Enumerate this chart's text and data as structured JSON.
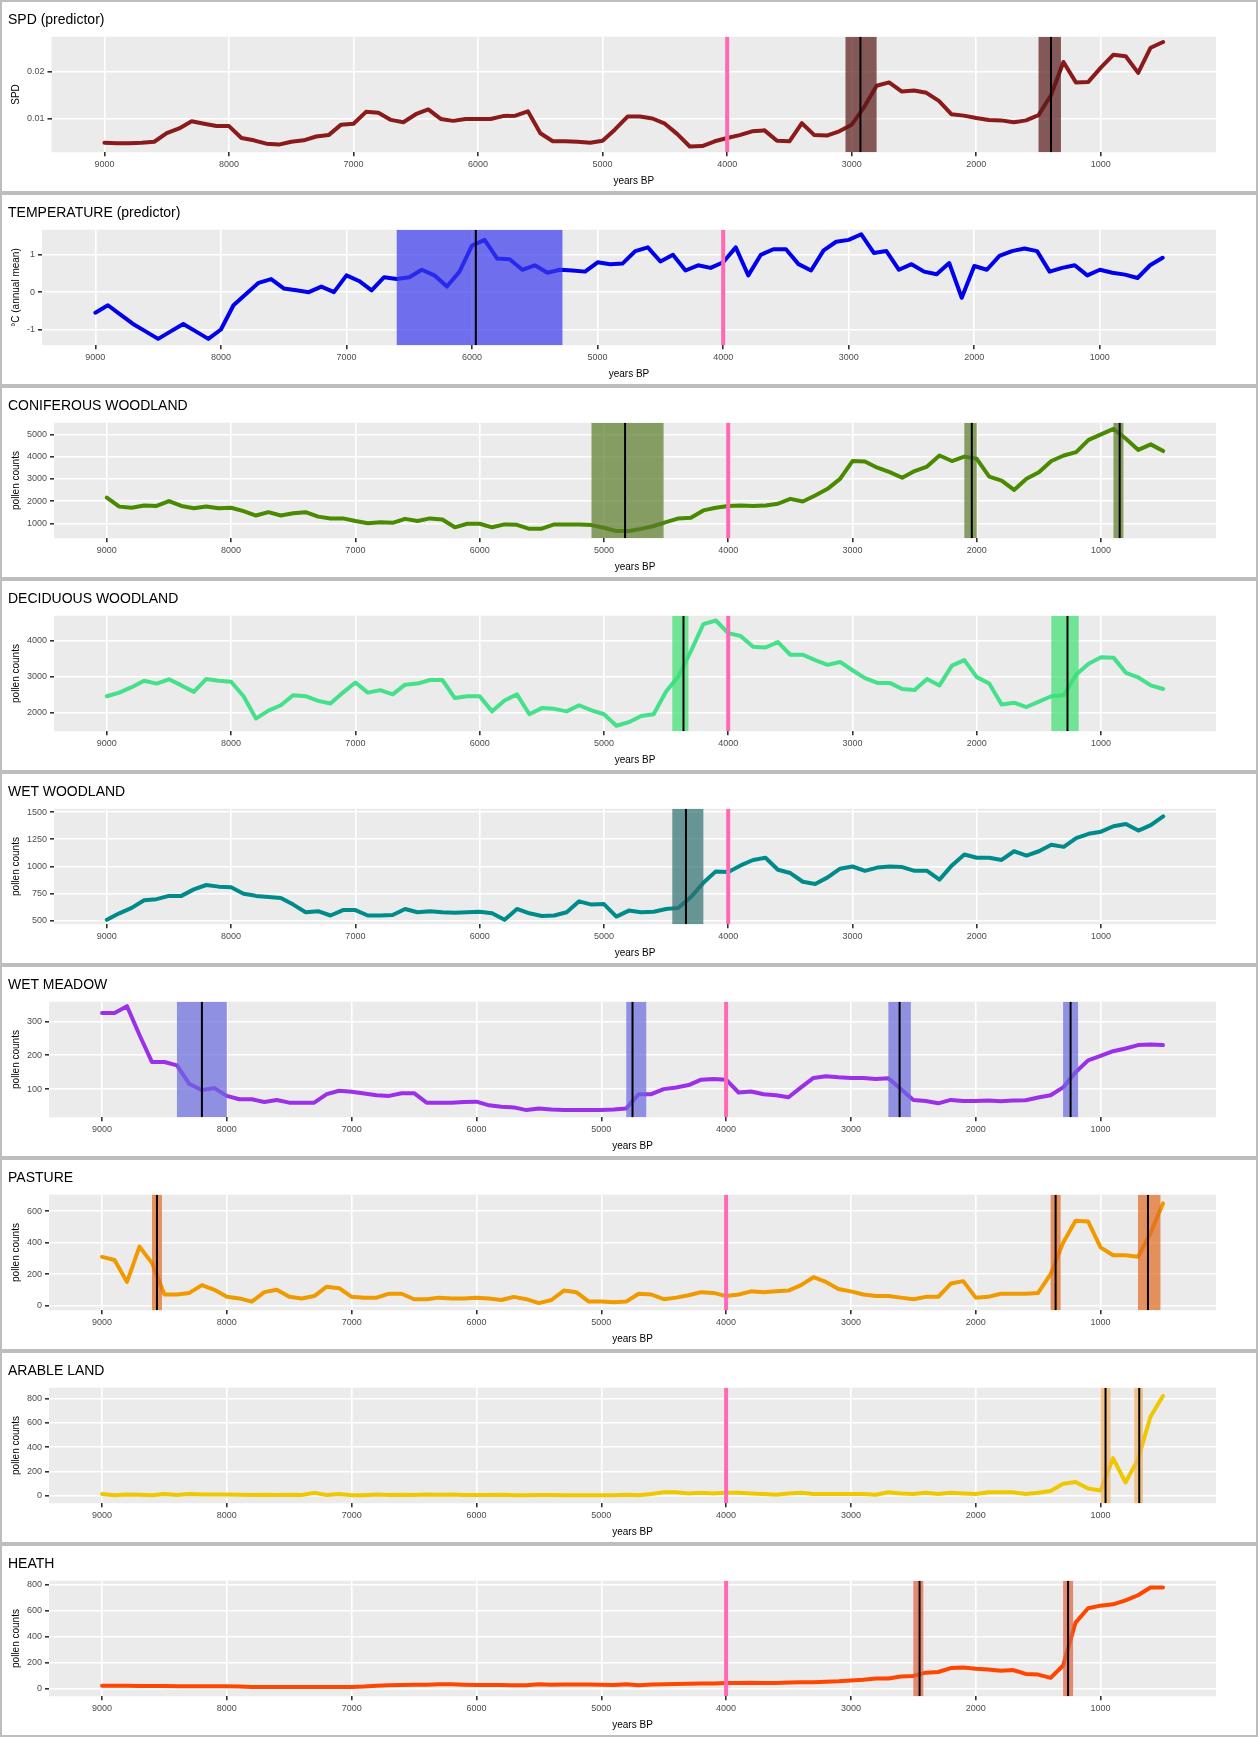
{
  "chart_data": [
    {
      "type": "line",
      "title": "SPD (predictor)",
      "xlabel": "years BP",
      "ylabel": "SPD",
      "grid": true,
      "xlim": [
        9425,
        75
      ],
      "xticks": [
        9000,
        8000,
        7000,
        6000,
        5000,
        4000,
        3000,
        2000,
        1000
      ],
      "ylim": [
        0.003,
        0.0273
      ],
      "yticks": [
        0.01,
        0.02
      ],
      "x": [
        9000,
        8900,
        8800,
        8700,
        8600,
        8500,
        8400,
        8300,
        8200,
        8100,
        8000,
        7900,
        7800,
        7700,
        7600,
        7500,
        7400,
        7300,
        7200,
        7100,
        7000,
        6900,
        6800,
        6700,
        6600,
        6500,
        6400,
        6300,
        6200,
        6100,
        6000,
        5900,
        5800,
        5700,
        5600,
        5500,
        5400,
        5300,
        5200,
        5100,
        5000,
        4900,
        4800,
        4700,
        4600,
        4500,
        4400,
        4300,
        4200,
        4100,
        4000,
        3900,
        3800,
        3700,
        3600,
        3500,
        3400,
        3300,
        3200,
        3100,
        3000,
        2900,
        2800,
        2700,
        2600,
        2500,
        2400,
        2300,
        2200,
        2100,
        2000,
        1900,
        1800,
        1700,
        1600,
        1500,
        1400,
        1300,
        1200,
        1100,
        1000,
        900,
        800,
        700,
        600,
        500
      ],
      "series": [
        {
          "color": "#8b1a1a",
          "values": [
            0.005,
            0.0049,
            0.0049,
            0.005,
            0.0052,
            0.007,
            0.008,
            0.0095,
            0.009,
            0.0085,
            0.0085,
            0.006,
            0.0055,
            0.0048,
            0.0046,
            0.0052,
            0.0055,
            0.0063,
            0.0066,
            0.0088,
            0.009,
            0.0115,
            0.0113,
            0.0098,
            0.0093,
            0.011,
            0.012,
            0.01,
            0.0096,
            0.01,
            0.01,
            0.01,
            0.0106,
            0.0107,
            0.0116,
            0.007,
            0.0053,
            0.0053,
            0.0052,
            0.005,
            0.0054,
            0.0078,
            0.0105,
            0.0105,
            0.0101,
            0.009,
            0.0068,
            0.0042,
            0.0043,
            0.0053,
            0.006,
            0.0066,
            0.0074,
            0.0076,
            0.0054,
            0.0053,
            0.0091,
            0.0066,
            0.0065,
            0.0074,
            0.0088,
            0.0125,
            0.017,
            0.0177,
            0.0158,
            0.016,
            0.0155,
            0.0138,
            0.011,
            0.0107,
            0.0102,
            0.0098,
            0.0097,
            0.0093,
            0.0097,
            0.0108,
            0.015,
            0.022,
            0.0177,
            0.0178,
            0.0208,
            0.0235,
            0.0232,
            0.0197,
            0.025,
            0.0262
          ]
        }
      ],
      "bands": [
        {
          "axis": "x",
          "from": 3050,
          "to": 2800,
          "color": "#5a1a1a"
        },
        {
          "axis": "x",
          "from": 1500,
          "to": 1320,
          "color": "#5a1a1a"
        }
      ],
      "ref_lines": [
        {
          "axis": "x",
          "value": 4000,
          "color": "#ff69b4"
        },
        {
          "axis": "x",
          "value": 2930,
          "color": "#000000"
        },
        {
          "axis": "x",
          "value": 1400,
          "color": "#000000"
        }
      ]
    },
    {
      "type": "line",
      "title": "TEMPERATURE (predictor)",
      "xlabel": "years BP",
      "ylabel": "°C (annual mean)",
      "grid": true,
      "xlim": [
        9425,
        75
      ],
      "xticks": [
        9000,
        8000,
        7000,
        6000,
        5000,
        4000,
        3000,
        2000,
        1000
      ],
      "ylim": [
        -1.42,
        1.67
      ],
      "yticks": [
        -1,
        0,
        1
      ],
      "x": [
        9000,
        8900,
        8800,
        8700,
        8600,
        8500,
        8400,
        8300,
        8200,
        8100,
        8000,
        7900,
        7800,
        7700,
        7600,
        7500,
        7400,
        7300,
        7200,
        7100,
        7000,
        6900,
        6800,
        6700,
        6600,
        6500,
        6400,
        6300,
        6200,
        6100,
        6000,
        5900,
        5800,
        5700,
        5600,
        5500,
        5400,
        5300,
        5200,
        5100,
        5000,
        4900,
        4800,
        4700,
        4600,
        4500,
        4400,
        4300,
        4200,
        4100,
        4000,
        3900,
        3800,
        3700,
        3600,
        3500,
        3400,
        3300,
        3200,
        3100,
        3000,
        2900,
        2800,
        2700,
        2600,
        2500,
        2400,
        2300,
        2200,
        2100,
        2000,
        1900,
        1800,
        1700,
        1600,
        1500,
        1400,
        1300,
        1200,
        1100,
        1000,
        900,
        800,
        700,
        600,
        500
      ],
      "series": [
        {
          "color": "#0000ee",
          "values": [
            -0.55,
            -0.35,
            -0.6,
            -0.85,
            -1.05,
            -1.25,
            -1.05,
            -0.85,
            -1.05,
            -1.25,
            -1.0,
            -0.35,
            -0.05,
            0.25,
            0.35,
            0.1,
            0.05,
            0.0,
            0.15,
            0.0,
            0.45,
            0.3,
            0.05,
            0.4,
            0.35,
            0.4,
            0.6,
            0.45,
            0.15,
            0.55,
            1.25,
            1.4,
            0.9,
            0.88,
            0.6,
            0.72,
            0.52,
            0.6,
            0.58,
            0.55,
            0.8,
            0.75,
            0.77,
            1.1,
            1.2,
            0.82,
            1.0,
            0.58,
            0.72,
            0.65,
            0.8,
            1.2,
            0.45,
            1.0,
            1.15,
            1.15,
            0.75,
            0.58,
            1.12,
            1.35,
            1.4,
            1.55,
            1.05,
            1.1,
            0.6,
            0.75,
            0.55,
            0.48,
            0.78,
            -0.15,
            0.7,
            0.6,
            0.97,
            1.1,
            1.17,
            1.1,
            0.55,
            0.65,
            0.72,
            0.45,
            0.6,
            0.52,
            0.47,
            0.38,
            0.72,
            0.92
          ]
        }
      ],
      "bands": [
        {
          "axis": "x",
          "from": 6600,
          "to": 5280,
          "color": "#3a3aee"
        }
      ],
      "ref_lines": [
        {
          "axis": "x",
          "value": 4000,
          "color": "#ff69b4"
        },
        {
          "axis": "x",
          "value": 5970,
          "color": "#000000"
        }
      ]
    },
    {
      "type": "line",
      "title": "CONIFEROUS WOODLAND",
      "xlabel": "years BP",
      "ylabel": "pollen counts",
      "grid": true,
      "xlim": [
        9425,
        75
      ],
      "xticks": [
        9000,
        8000,
        7000,
        6000,
        5000,
        4000,
        3000,
        2000,
        1000
      ],
      "ylim": [
        330,
        5520
      ],
      "yticks": [
        1000,
        2000,
        3000,
        4000,
        5000
      ],
      "x": [
        9000,
        8900,
        8800,
        8700,
        8600,
        8500,
        8400,
        8300,
        8200,
        8100,
        8000,
        7900,
        7800,
        7700,
        7600,
        7500,
        7400,
        7300,
        7200,
        7100,
        7000,
        6900,
        6800,
        6700,
        6600,
        6500,
        6400,
        6300,
        6200,
        6100,
        6000,
        5900,
        5800,
        5700,
        5600,
        5500,
        5400,
        5300,
        5200,
        5100,
        5000,
        4900,
        4800,
        4700,
        4600,
        4500,
        4400,
        4300,
        4200,
        4100,
        4000,
        3900,
        3800,
        3700,
        3600,
        3500,
        3400,
        3300,
        3200,
        3100,
        3000,
        2900,
        2800,
        2700,
        2600,
        2500,
        2400,
        2300,
        2200,
        2100,
        2000,
        1900,
        1800,
        1700,
        1600,
        1500,
        1400,
        1300,
        1200,
        1100,
        1000,
        900,
        800,
        700,
        600,
        500
      ],
      "series": [
        {
          "color": "#4a8a00",
          "values": [
            2150,
            1750,
            1700,
            1800,
            1780,
            2000,
            1780,
            1680,
            1760,
            1680,
            1700,
            1550,
            1350,
            1500,
            1350,
            1450,
            1500,
            1300,
            1220,
            1220,
            1100,
            1000,
            1050,
            1020,
            1200,
            1100,
            1220,
            1170,
            820,
            980,
            980,
            820,
            950,
            930,
            750,
            760,
            950,
            950,
            950,
            920,
            800,
            650,
            650,
            750,
            880,
            1050,
            1220,
            1250,
            1580,
            1700,
            1780,
            1800,
            1780,
            1800,
            1880,
            2100,
            1980,
            2250,
            2550,
            3000,
            3800,
            3780,
            3500,
            3300,
            3050,
            3350,
            3550,
            4050,
            3800,
            4000,
            3900,
            3100,
            2920,
            2500,
            3000,
            3300,
            3800,
            4050,
            4200,
            4750,
            5000,
            5250,
            4800,
            4300,
            4550,
            4250
          ]
        }
      ],
      "bands": [
        {
          "axis": "x",
          "from": 5100,
          "to": 4520,
          "color": "#5a7a2a"
        },
        {
          "axis": "x",
          "from": 2100,
          "to": 2000,
          "color": "#5a7a2a"
        },
        {
          "axis": "x",
          "from": 900,
          "to": 820,
          "color": "#5a7a2a"
        }
      ],
      "ref_lines": [
        {
          "axis": "x",
          "value": 4000,
          "color": "#ff69b4"
        },
        {
          "axis": "x",
          "value": 4830,
          "color": "#000000"
        },
        {
          "axis": "x",
          "value": 2040,
          "color": "#000000"
        },
        {
          "axis": "x",
          "value": 850,
          "color": "#000000"
        }
      ]
    },
    {
      "type": "line",
      "title": "DECIDUOUS WOODLAND",
      "xlabel": "years BP",
      "ylabel": "pollen counts",
      "grid": true,
      "xlim": [
        9425,
        75
      ],
      "xticks": [
        9000,
        8000,
        7000,
        6000,
        5000,
        4000,
        3000,
        2000,
        1000
      ],
      "ylim": [
        1480,
        4680
      ],
      "yticks": [
        2000,
        3000,
        4000
      ],
      "x": [
        9000,
        8900,
        8800,
        8700,
        8600,
        8500,
        8400,
        8300,
        8200,
        8100,
        8000,
        7900,
        7800,
        7700,
        7600,
        7500,
        7400,
        7300,
        7200,
        7100,
        7000,
        6900,
        6800,
        6700,
        6600,
        6500,
        6400,
        6300,
        6200,
        6100,
        6000,
        5900,
        5800,
        5700,
        5600,
        5500,
        5400,
        5300,
        5200,
        5100,
        5000,
        4900,
        4800,
        4700,
        4600,
        4500,
        4400,
        4300,
        4200,
        4100,
        4000,
        3900,
        3800,
        3700,
        3600,
        3500,
        3400,
        3300,
        3200,
        3100,
        3000,
        2900,
        2800,
        2700,
        2600,
        2500,
        2400,
        2300,
        2200,
        2100,
        2000,
        1900,
        1800,
        1700,
        1600,
        1500,
        1400,
        1300,
        1200,
        1100,
        1000,
        900,
        800,
        700,
        600,
        500
      ],
      "series": [
        {
          "color": "#44e08a",
          "values": [
            2450,
            2550,
            2700,
            2880,
            2800,
            2920,
            2750,
            2570,
            2930,
            2880,
            2850,
            2450,
            1830,
            2050,
            2200,
            2480,
            2450,
            2320,
            2250,
            2550,
            2830,
            2550,
            2620,
            2500,
            2770,
            2800,
            2900,
            2900,
            2400,
            2450,
            2450,
            2030,
            2330,
            2500,
            1950,
            2120,
            2100,
            2030,
            2200,
            2060,
            1950,
            1630,
            1730,
            1900,
            1950,
            2580,
            3000,
            3700,
            4450,
            4550,
            4200,
            4120,
            3820,
            3800,
            3950,
            3600,
            3600,
            3450,
            3320,
            3400,
            3170,
            2950,
            2820,
            2820,
            2650,
            2620,
            2930,
            2750,
            3300,
            3450,
            2980,
            2800,
            2220,
            2270,
            2150,
            2300,
            2450,
            2480,
            3050,
            3350,
            3530,
            3520,
            3100,
            2970,
            2750,
            2650
          ]
        }
      ],
      "bands": [
        {
          "axis": "x",
          "from": 4450,
          "to": 4320,
          "color": "#3de070"
        },
        {
          "axis": "x",
          "from": 1400,
          "to": 1180,
          "color": "#3de070"
        }
      ],
      "ref_lines": [
        {
          "axis": "x",
          "value": 4000,
          "color": "#ff69b4"
        },
        {
          "axis": "x",
          "value": 4360,
          "color": "#000000"
        },
        {
          "axis": "x",
          "value": 1270,
          "color": "#000000"
        }
      ]
    },
    {
      "type": "line",
      "title": "WET WOODLAND",
      "xlabel": "years BP",
      "ylabel": "pollen counts",
      "grid": true,
      "xlim": [
        9425,
        75
      ],
      "xticks": [
        9000,
        8000,
        7000,
        6000,
        5000,
        4000,
        3000,
        2000,
        1000
      ],
      "ylim": [
        470,
        1530
      ],
      "yticks": [
        500,
        750,
        1000,
        1250,
        1500
      ],
      "x": [
        9000,
        8900,
        8800,
        8700,
        8600,
        8500,
        8400,
        8300,
        8200,
        8100,
        8000,
        7900,
        7800,
        7700,
        7600,
        7500,
        7400,
        7300,
        7200,
        7100,
        7000,
        6900,
        6800,
        6700,
        6600,
        6500,
        6400,
        6300,
        6200,
        6100,
        6000,
        5900,
        5800,
        5700,
        5600,
        5500,
        5400,
        5300,
        5200,
        5100,
        5000,
        4900,
        4800,
        4700,
        4600,
        4500,
        4400,
        4300,
        4200,
        4100,
        4000,
        3900,
        3800,
        3700,
        3600,
        3500,
        3400,
        3300,
        3200,
        3100,
        3000,
        2900,
        2800,
        2700,
        2600,
        2500,
        2400,
        2300,
        2200,
        2100,
        2000,
        1900,
        1800,
        1700,
        1600,
        1500,
        1400,
        1300,
        1200,
        1100,
        1000,
        900,
        800,
        700,
        600,
        500
      ],
      "series": [
        {
          "color": "#008b8b",
          "values": [
            510,
            570,
            620,
            690,
            700,
            730,
            730,
            790,
            830,
            815,
            810,
            750,
            730,
            720,
            710,
            650,
            580,
            590,
            550,
            600,
            600,
            550,
            550,
            555,
            610,
            580,
            590,
            580,
            575,
            580,
            585,
            570,
            510,
            610,
            570,
            545,
            550,
            580,
            680,
            650,
            655,
            540,
            595,
            580,
            585,
            610,
            620,
            720,
            850,
            955,
            950,
            1010,
            1060,
            1080,
            970,
            940,
            860,
            840,
            900,
            980,
            1000,
            960,
            990,
            1000,
            995,
            960,
            960,
            880,
            1010,
            1110,
            1080,
            1080,
            1060,
            1140,
            1100,
            1140,
            1200,
            1180,
            1260,
            1300,
            1320,
            1370,
            1390,
            1330,
            1380,
            1460
          ]
        }
      ],
      "bands": [
        {
          "axis": "x",
          "from": 4450,
          "to": 4200,
          "color": "#2f6f6f"
        }
      ],
      "ref_lines": [
        {
          "axis": "x",
          "value": 4000,
          "color": "#ff69b4"
        },
        {
          "axis": "x",
          "value": 4340,
          "color": "#000000"
        }
      ]
    },
    {
      "type": "line",
      "title": "WET MEADOW",
      "xlabel": "years BP",
      "ylabel": "pollen counts",
      "grid": true,
      "xlim": [
        9425,
        75
      ],
      "xticks": [
        9000,
        8000,
        7000,
        6000,
        5000,
        4000,
        3000,
        2000,
        1000
      ],
      "ylim": [
        17,
        358
      ],
      "yticks": [
        100,
        200,
        300
      ],
      "x": [
        9000,
        8900,
        8800,
        8700,
        8600,
        8500,
        8400,
        8300,
        8200,
        8100,
        8000,
        7900,
        7800,
        7700,
        7600,
        7500,
        7400,
        7300,
        7200,
        7100,
        7000,
        6900,
        6800,
        6700,
        6600,
        6500,
        6400,
        6300,
        6200,
        6100,
        6000,
        5900,
        5800,
        5700,
        5600,
        5500,
        5400,
        5300,
        5200,
        5100,
        5000,
        4900,
        4800,
        4700,
        4600,
        4500,
        4400,
        4300,
        4200,
        4100,
        4000,
        3900,
        3800,
        3700,
        3600,
        3500,
        3400,
        3300,
        3200,
        3100,
        3000,
        2900,
        2800,
        2700,
        2600,
        2500,
        2400,
        2300,
        2200,
        2100,
        2000,
        1900,
        1800,
        1700,
        1600,
        1500,
        1400,
        1300,
        1200,
        1100,
        1000,
        900,
        800,
        700,
        600,
        500
      ],
      "series": [
        {
          "color": "#9b30ea",
          "values": [
            325,
            325,
            345,
            260,
            180,
            180,
            170,
            115,
            97,
            103,
            80,
            70,
            70,
            62,
            68,
            60,
            60,
            60,
            85,
            95,
            92,
            87,
            82,
            80,
            88,
            88,
            60,
            60,
            60,
            62,
            63,
            52,
            48,
            46,
            38,
            43,
            40,
            38,
            38,
            38,
            38,
            40,
            43,
            85,
            85,
            100,
            105,
            112,
            128,
            130,
            128,
            90,
            93,
            85,
            82,
            76,
            105,
            133,
            138,
            135,
            133,
            133,
            130,
            132,
            100,
            68,
            65,
            58,
            68,
            65,
            65,
            66,
            64,
            66,
            67,
            75,
            82,
            105,
            150,
            185,
            198,
            212,
            220,
            230,
            232,
            230
          ]
        }
      ],
      "bands": [
        {
          "axis": "x",
          "from": 8400,
          "to": 8000,
          "color": "#6a6ae0"
        },
        {
          "axis": "x",
          "from": 4800,
          "to": 4640,
          "color": "#6a6ae0"
        },
        {
          "axis": "x",
          "from": 2700,
          "to": 2520,
          "color": "#6a6ae0"
        },
        {
          "axis": "x",
          "from": 1300,
          "to": 1180,
          "color": "#6a6ae0"
        }
      ],
      "ref_lines": [
        {
          "axis": "x",
          "value": 4000,
          "color": "#ff69b4"
        },
        {
          "axis": "x",
          "value": 8200,
          "color": "#000000"
        },
        {
          "axis": "x",
          "value": 4750,
          "color": "#000000"
        },
        {
          "axis": "x",
          "value": 2610,
          "color": "#000000"
        },
        {
          "axis": "x",
          "value": 1240,
          "color": "#000000"
        }
      ]
    },
    {
      "type": "line",
      "title": "PASTURE",
      "xlabel": "years BP",
      "ylabel": "pollen counts",
      "grid": true,
      "xlim": [
        9425,
        75
      ],
      "xticks": [
        9000,
        8000,
        7000,
        6000,
        5000,
        4000,
        3000,
        2000,
        1000
      ],
      "ylim": [
        -30,
        705
      ],
      "yticks": [
        0,
        200,
        400,
        600
      ],
      "x": [
        9000,
        8900,
        8800,
        8700,
        8600,
        8500,
        8400,
        8300,
        8200,
        8100,
        8000,
        7900,
        7800,
        7700,
        7600,
        7500,
        7400,
        7300,
        7200,
        7100,
        7000,
        6900,
        6800,
        6700,
        6600,
        6500,
        6400,
        6300,
        6200,
        6100,
        6000,
        5900,
        5800,
        5700,
        5600,
        5500,
        5400,
        5300,
        5200,
        5100,
        5000,
        4900,
        4800,
        4700,
        4600,
        4500,
        4400,
        4300,
        4200,
        4100,
        4000,
        3900,
        3800,
        3700,
        3600,
        3500,
        3400,
        3300,
        3200,
        3100,
        3000,
        2900,
        2800,
        2700,
        2600,
        2500,
        2400,
        2300,
        2200,
        2100,
        2000,
        1900,
        1800,
        1700,
        1600,
        1500,
        1400,
        1300,
        1200,
        1100,
        1000,
        900,
        800,
        700,
        600,
        500
      ],
      "series": [
        {
          "color": "#f09a00",
          "values": [
            310,
            290,
            150,
            375,
            270,
            70,
            70,
            80,
            130,
            100,
            55,
            45,
            25,
            85,
            100,
            55,
            45,
            60,
            120,
            110,
            55,
            50,
            50,
            75,
            75,
            40,
            40,
            50,
            45,
            45,
            50,
            45,
            35,
            55,
            40,
            15,
            35,
            95,
            85,
            25,
            25,
            20,
            25,
            75,
            70,
            40,
            50,
            65,
            85,
            80,
            60,
            70,
            90,
            85,
            90,
            95,
            130,
            180,
            150,
            105,
            90,
            70,
            60,
            60,
            50,
            40,
            55,
            55,
            140,
            155,
            50,
            55,
            75,
            75,
            75,
            80,
            200,
            400,
            540,
            535,
            370,
            320,
            320,
            310,
            460,
            650
          ]
        }
      ],
      "bands": [
        {
          "axis": "x",
          "from": 8600,
          "to": 8520,
          "color": "#e06a20"
        },
        {
          "axis": "x",
          "from": 1400,
          "to": 1320,
          "color": "#e06a20"
        },
        {
          "axis": "x",
          "from": 700,
          "to": 520,
          "color": "#e06a20"
        }
      ],
      "ref_lines": [
        {
          "axis": "x",
          "value": 4000,
          "color": "#ff69b4"
        },
        {
          "axis": "x",
          "value": 8560,
          "color": "#000000"
        },
        {
          "axis": "x",
          "value": 1360,
          "color": "#000000"
        },
        {
          "axis": "x",
          "value": 620,
          "color": "#000000"
        }
      ]
    },
    {
      "type": "line",
      "title": "ARABLE LAND",
      "xlabel": "years BP",
      "ylabel": "pollen counts",
      "grid": true,
      "xlim": [
        9425,
        75
      ],
      "xticks": [
        9000,
        8000,
        7000,
        6000,
        5000,
        4000,
        3000,
        2000,
        1000
      ],
      "ylim": [
        -60,
        888
      ],
      "yticks": [
        0,
        200,
        400,
        600,
        800
      ],
      "x": [
        9000,
        8900,
        8800,
        8700,
        8600,
        8500,
        8400,
        8300,
        8200,
        8100,
        8000,
        7900,
        7800,
        7700,
        7600,
        7500,
        7400,
        7300,
        7200,
        7100,
        7000,
        6900,
        6800,
        6700,
        6600,
        6500,
        6400,
        6300,
        6200,
        6100,
        6000,
        5900,
        5800,
        5700,
        5600,
        5500,
        5400,
        5300,
        5200,
        5100,
        5000,
        4900,
        4800,
        4700,
        4600,
        4500,
        4400,
        4300,
        4200,
        4100,
        4000,
        3900,
        3800,
        3700,
        3600,
        3500,
        3400,
        3300,
        3200,
        3100,
        3000,
        2900,
        2800,
        2700,
        2600,
        2500,
        2400,
        2300,
        2200,
        2100,
        2000,
        1900,
        1800,
        1700,
        1600,
        1500,
        1400,
        1300,
        1200,
        1100,
        1000,
        900,
        800,
        700,
        600,
        500
      ],
      "series": [
        {
          "color": "#f0c800",
          "values": [
            15,
            5,
            12,
            10,
            5,
            15,
            8,
            15,
            12,
            12,
            12,
            10,
            8,
            10,
            8,
            10,
            8,
            25,
            8,
            15,
            5,
            5,
            12,
            8,
            10,
            8,
            12,
            10,
            12,
            8,
            8,
            8,
            10,
            5,
            5,
            8,
            8,
            5,
            5,
            5,
            5,
            5,
            10,
            5,
            15,
            30,
            30,
            20,
            25,
            20,
            25,
            25,
            20,
            15,
            10,
            20,
            25,
            15,
            15,
            15,
            15,
            15,
            10,
            30,
            20,
            15,
            25,
            15,
            25,
            20,
            15,
            30,
            30,
            30,
            15,
            25,
            40,
            100,
            115,
            60,
            45,
            310,
            110,
            300,
            650,
            820
          ]
        }
      ],
      "bands": [
        {
          "axis": "x",
          "from": 1000,
          "to": 920,
          "color": "#f0b060"
        },
        {
          "axis": "x",
          "from": 730,
          "to": 660,
          "color": "#f0b060"
        }
      ],
      "ref_lines": [
        {
          "axis": "x",
          "value": 4000,
          "color": "#ff69b4"
        },
        {
          "axis": "x",
          "value": 960,
          "color": "#000000"
        },
        {
          "axis": "x",
          "value": 690,
          "color": "#000000"
        }
      ]
    },
    {
      "type": "line",
      "title": "HEATH",
      "xlabel": "years BP",
      "ylabel": "pollen counts",
      "grid": true,
      "xlim": [
        9425,
        75
      ],
      "xticks": [
        9000,
        8000,
        7000,
        6000,
        5000,
        4000,
        3000,
        2000,
        1000
      ],
      "ylim": [
        -56,
        831
      ],
      "yticks": [
        0,
        200,
        400,
        600,
        800
      ],
      "x": [
        9000,
        8900,
        8800,
        8700,
        8600,
        8500,
        8400,
        8300,
        8200,
        8100,
        8000,
        7900,
        7800,
        7700,
        7600,
        7500,
        7400,
        7300,
        7200,
        7100,
        7000,
        6900,
        6800,
        6700,
        6600,
        6500,
        6400,
        6300,
        6200,
        6100,
        6000,
        5900,
        5800,
        5700,
        5600,
        5500,
        5400,
        5300,
        5200,
        5100,
        5000,
        4900,
        4800,
        4700,
        4600,
        4500,
        4400,
        4300,
        4200,
        4100,
        4000,
        3900,
        3800,
        3700,
        3600,
        3500,
        3400,
        3300,
        3200,
        3100,
        3000,
        2900,
        2800,
        2700,
        2600,
        2500,
        2400,
        2300,
        2200,
        2100,
        2000,
        1900,
        1800,
        1700,
        1600,
        1500,
        1400,
        1300,
        1200,
        1100,
        1000,
        900,
        800,
        700,
        600,
        500
      ],
      "series": [
        {
          "color": "#ff4500",
          "values": [
            25,
            25,
            24,
            23,
            22,
            22,
            21,
            20,
            20,
            20,
            20,
            18,
            15,
            15,
            15,
            14,
            14,
            14,
            15,
            15,
            15,
            18,
            25,
            28,
            30,
            32,
            32,
            35,
            35,
            32,
            30,
            30,
            30,
            28,
            28,
            35,
            32,
            33,
            33,
            33,
            32,
            30,
            35,
            28,
            33,
            35,
            38,
            40,
            42,
            42,
            45,
            45,
            48,
            45,
            45,
            50,
            52,
            52,
            55,
            58,
            65,
            70,
            80,
            80,
            95,
            100,
            125,
            130,
            160,
            165,
            155,
            150,
            140,
            145,
            115,
            110,
            85,
            180,
            510,
            620,
            640,
            650,
            680,
            720,
            780,
            780
          ]
        }
      ],
      "bands": [
        {
          "axis": "x",
          "from": 2500,
          "to": 2420,
          "color": "#e06040"
        },
        {
          "axis": "x",
          "from": 1300,
          "to": 1220,
          "color": "#e06040"
        }
      ],
      "ref_lines": [
        {
          "axis": "x",
          "value": 4000,
          "color": "#ff69b4"
        },
        {
          "axis": "x",
          "value": 2450,
          "color": "#000000"
        },
        {
          "axis": "x",
          "value": 1260,
          "color": "#000000"
        }
      ]
    }
  ]
}
